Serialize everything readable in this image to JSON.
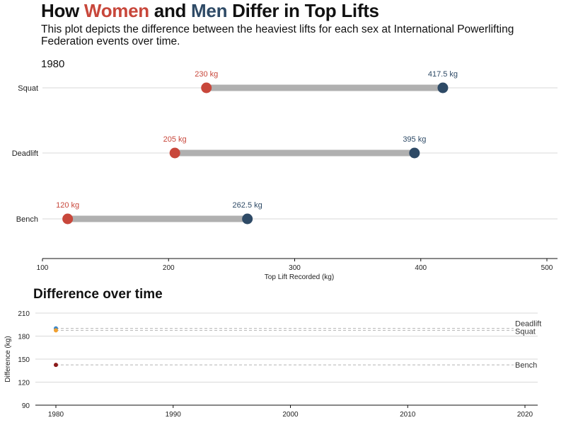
{
  "header": {
    "title_parts": [
      "How",
      "Women",
      "and",
      "Men",
      "Differ in",
      "Top",
      "Lifts"
    ],
    "subtitle": "This plot depicts the difference between the heaviest lifts for each sex at International Powerlifting Federation events over time.",
    "year": "1980",
    "section2_title": "Difference over time"
  },
  "colors": {
    "women": "#c8473b",
    "men": "#2e4a66",
    "bar": "#b0b0b0"
  },
  "chart_data": [
    {
      "type": "dumbbell",
      "xlabel": "Top Lift Recorded (kg)",
      "xlim": [
        100,
        500
      ],
      "xticks": [
        100,
        200,
        300,
        400,
        500
      ],
      "rows": [
        {
          "lift": "Squat",
          "women": 230,
          "men": 417.5,
          "women_label": "230 kg",
          "men_label": "417.5 kg"
        },
        {
          "lift": "Deadlift",
          "women": 205,
          "men": 395,
          "women_label": "205 kg",
          "men_label": "395 kg"
        },
        {
          "lift": "Bench",
          "women": 120,
          "men": 262.5,
          "women_label": "120 kg",
          "men_label": "262.5 kg"
        }
      ]
    },
    {
      "type": "line",
      "ylabel": "Difference (kg)",
      "xlim": [
        1980,
        2020
      ],
      "ylim": [
        90,
        210
      ],
      "xticks": [
        1980,
        1990,
        2000,
        2010,
        2020
      ],
      "yticks": [
        90,
        120,
        150,
        180,
        210
      ],
      "series": [
        {
          "name": "Deadlift",
          "color": "#3a86c8",
          "points": [
            [
              1980,
              190
            ]
          ]
        },
        {
          "name": "Squat",
          "color": "#f0a030",
          "points": [
            [
              1980,
              187.5
            ]
          ]
        },
        {
          "name": "Bench",
          "color": "#8b1a1a",
          "points": [
            [
              1980,
              142.5
            ]
          ]
        }
      ]
    }
  ]
}
